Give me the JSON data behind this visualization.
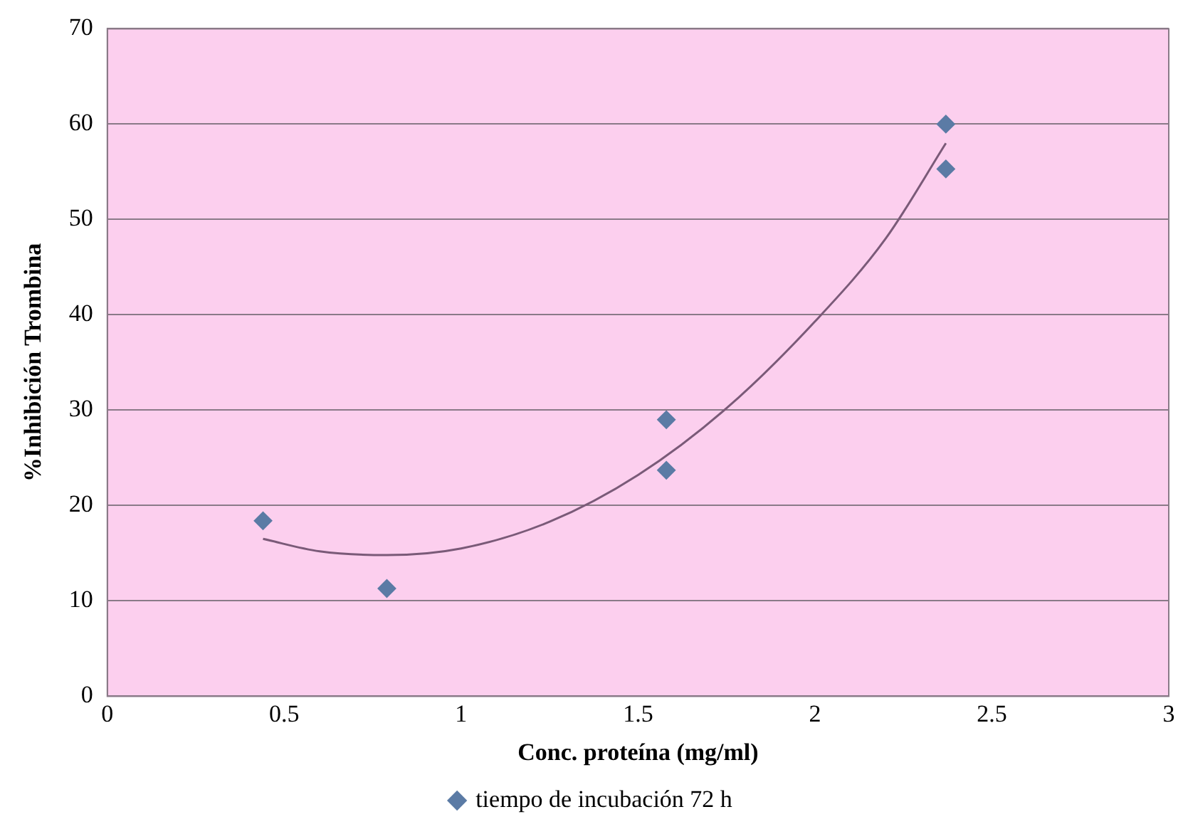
{
  "chart_data": {
    "type": "scatter",
    "xlabel": "Conc. proteína (mg/ml)",
    "ylabel": "%Inhibición Trombina",
    "xlim": [
      0,
      3
    ],
    "xticks": [
      0,
      0.5,
      1,
      1.5,
      2,
      2.5,
      3
    ],
    "ylim": [
      0,
      70
    ],
    "yticks": [
      0,
      10,
      20,
      30,
      40,
      50,
      60,
      70
    ],
    "grid": "y",
    "legend": "bottom",
    "marker": "diamond",
    "series": [
      {
        "name": "tiempo de incubación 72 h",
        "color": "#5b7ba5",
        "x": [
          0.44,
          0.79,
          1.58,
          1.58,
          2.37,
          2.37
        ],
        "values": [
          18.4,
          11.3,
          29.0,
          23.7,
          60,
          55.3
        ]
      },
      {
        "type": "line",
        "color": "#7a5a78",
        "marker": "none",
        "x": [
          0.44,
          0.6,
          0.79,
          1.0,
          1.25,
          1.5,
          1.75,
          2.0,
          2.2,
          2.37
        ],
        "values": [
          16.5,
          15.2,
          14.8,
          15.5,
          18.3,
          23.2,
          30.2,
          39.3,
          48.0,
          58.0
        ]
      }
    ]
  }
}
